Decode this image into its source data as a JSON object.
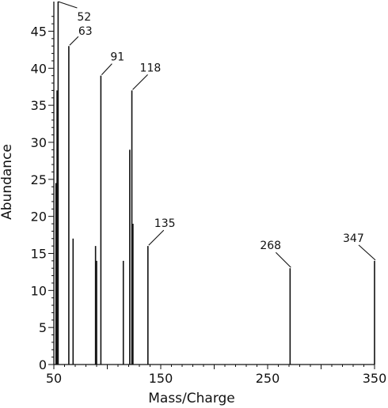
{
  "chart_data": {
    "type": "bar",
    "subtype": "mass-spectrum-stick",
    "xlabel": "Mass/Charge",
    "ylabel": "Abundance",
    "xlim": [
      50,
      350
    ],
    "ylim": [
      0,
      49
    ],
    "x_ticks_labeled": [
      50,
      150,
      250,
      350
    ],
    "y_ticks_labeled": [
      0,
      5,
      10,
      15,
      20,
      25,
      30,
      35,
      40,
      45
    ],
    "grid": false,
    "legend": "none",
    "peaks": [
      {
        "mz": 52,
        "abundance": 24.5
      },
      {
        "mz": 53,
        "abundance": 37
      },
      {
        "mz": 54,
        "abundance": 49
      },
      {
        "mz": 64,
        "abundance": 43
      },
      {
        "mz": 68,
        "abundance": 17
      },
      {
        "mz": 89,
        "abundance": 16
      },
      {
        "mz": 90,
        "abundance": 14
      },
      {
        "mz": 94,
        "abundance": 39
      },
      {
        "mz": 115,
        "abundance": 14
      },
      {
        "mz": 121,
        "abundance": 29
      },
      {
        "mz": 123,
        "abundance": 37
      },
      {
        "mz": 124,
        "abundance": 19
      },
      {
        "mz": 138,
        "abundance": 16
      },
      {
        "mz": 271,
        "abundance": 13
      },
      {
        "mz": 350,
        "abundance": 14
      }
    ],
    "annotations": [
      {
        "text": "52",
        "peak_mz": 54
      },
      {
        "text": "63",
        "peak_mz": 64
      },
      {
        "text": "91",
        "peak_mz": 94
      },
      {
        "text": "118",
        "peak_mz": 123
      },
      {
        "text": "135",
        "peak_mz": 138
      },
      {
        "text": "268",
        "peak_mz": 271
      },
      {
        "text": "347",
        "peak_mz": 350
      }
    ]
  }
}
